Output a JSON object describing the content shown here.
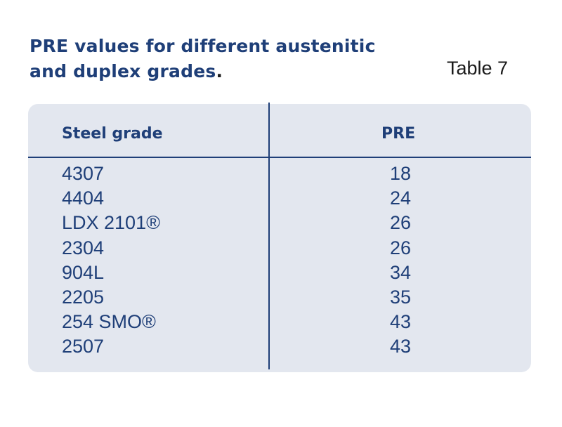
{
  "title": {
    "line1": "PRE values for different austenitic",
    "line2": "and duplex grades",
    "dot": "."
  },
  "table_label": "Table 7",
  "table": {
    "headers": {
      "grade": "Steel grade",
      "pre": "PRE"
    },
    "rows": [
      {
        "grade": "4307",
        "pre": "18"
      },
      {
        "grade": "4404",
        "pre": "24"
      },
      {
        "grade": "LDX 2101®",
        "pre": "26"
      },
      {
        "grade": "2304",
        "pre": "26"
      },
      {
        "grade": "904L",
        "pre": "34"
      },
      {
        "grade": "2205",
        "pre": "35"
      },
      {
        "grade": "254 SMO®",
        "pre": "43"
      },
      {
        "grade": "2507",
        "pre": "43"
      }
    ]
  }
}
